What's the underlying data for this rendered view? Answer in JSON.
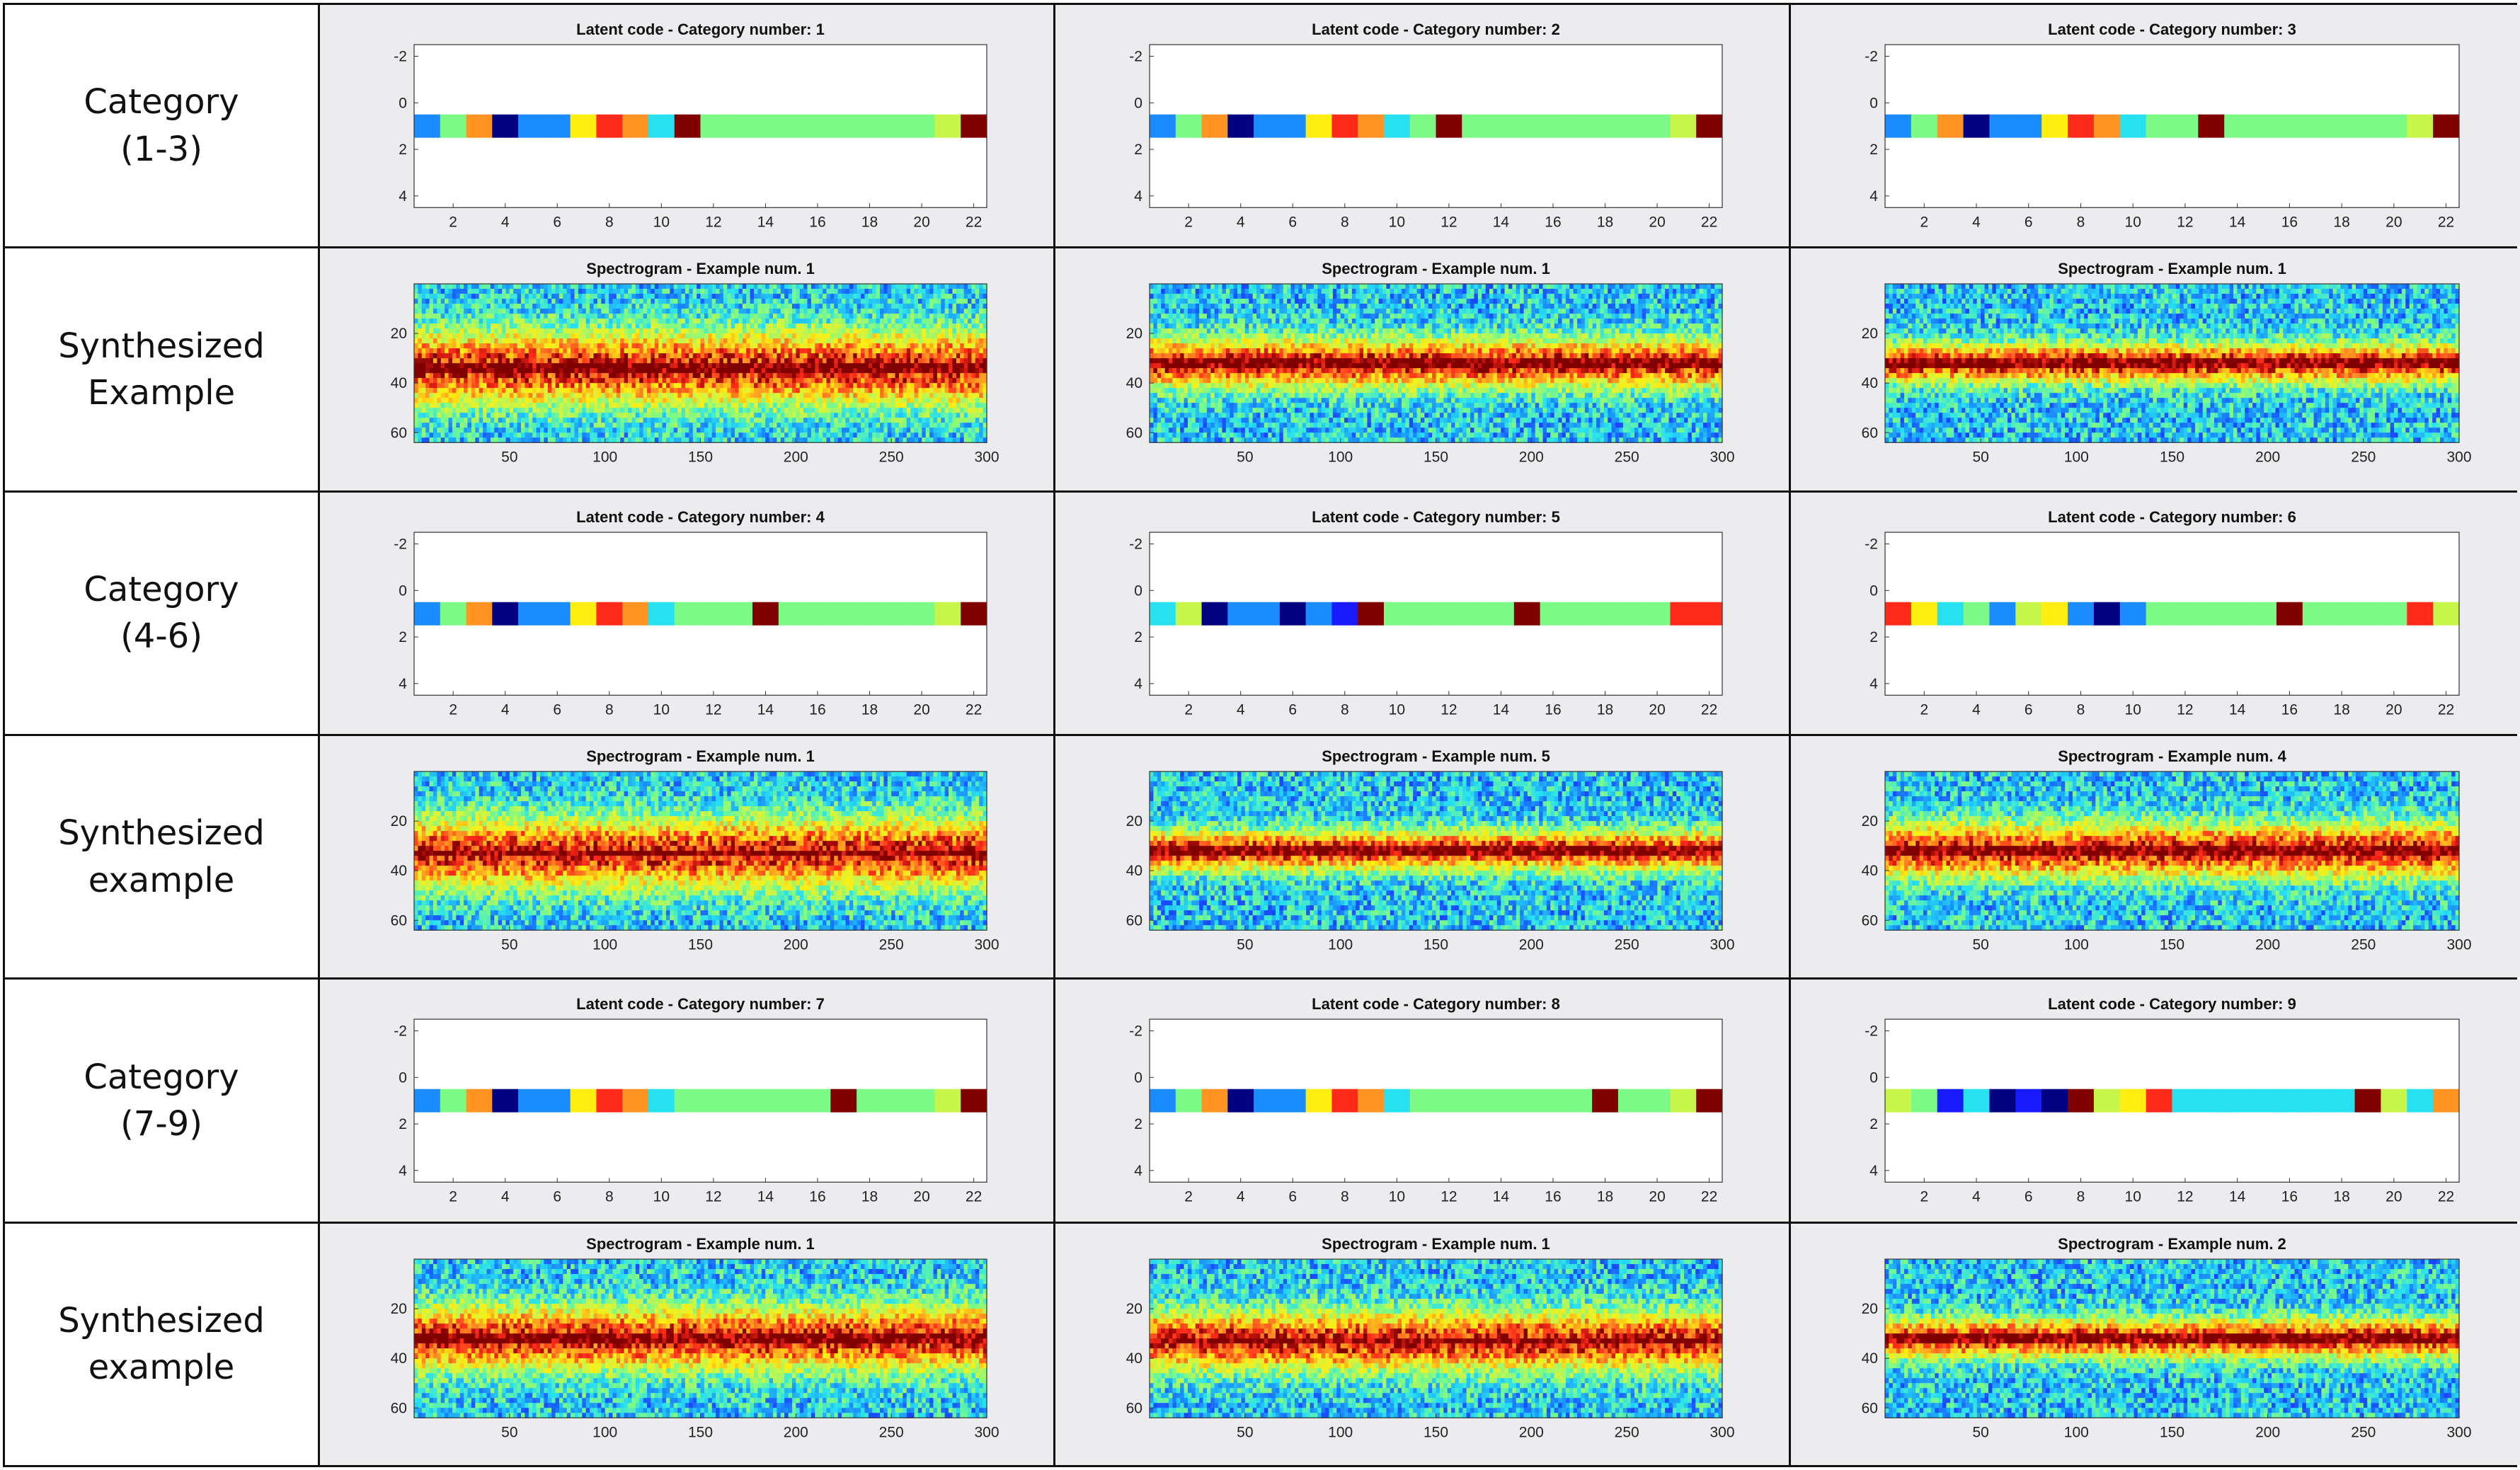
{
  "row_labels": [
    [
      "Category",
      "(1-3)"
    ],
    [
      "Synthesized",
      "Example"
    ],
    [
      "Category",
      "(4-6)"
    ],
    [
      "Synthesized",
      "example"
    ],
    [
      "Category",
      "(7-9)"
    ],
    [
      "Synthesized",
      "example"
    ]
  ],
  "colors": {
    "jet_1": "#000080",
    "jet_2": "#1a1aff",
    "jet_3": "#1a8cff",
    "jet_4": "#28e1f0",
    "jet_5": "#7dfa86",
    "jet_6": "#c8f54a",
    "jet_7": "#ffee11",
    "jet_8": "#ff9422",
    "jet_9": "#ff2a1a",
    "jet_10": "#800000"
  },
  "chart_data": [
    {
      "type": "heatmap",
      "kind": "latent",
      "title": "Latent code - Category number: 1",
      "x": {
        "range": [
          0.5,
          22.5
        ],
        "ticks": [
          "2",
          "4",
          "6",
          "8",
          "10",
          "12",
          "14",
          "16",
          "18",
          "20",
          "22"
        ]
      },
      "y": {
        "range": [
          -2.5,
          4.5
        ],
        "ticks": [
          "-2",
          "0",
          "2",
          "4"
        ]
      },
      "values": [
        3,
        5,
        8,
        1,
        3,
        3,
        7,
        9,
        8,
        4,
        10,
        5,
        5,
        5,
        5,
        5,
        5,
        5,
        5,
        5,
        6,
        10
      ]
    },
    {
      "type": "heatmap",
      "kind": "latent",
      "title": "Latent code - Category number: 2",
      "x": {
        "range": [
          0.5,
          22.5
        ],
        "ticks": [
          "2",
          "4",
          "6",
          "8",
          "10",
          "12",
          "14",
          "16",
          "18",
          "20",
          "22"
        ]
      },
      "y": {
        "range": [
          -2.5,
          4.5
        ],
        "ticks": [
          "-2",
          "0",
          "2",
          "4"
        ]
      },
      "values": [
        3,
        5,
        8,
        1,
        3,
        3,
        7,
        9,
        8,
        4,
        5,
        10,
        5,
        5,
        5,
        5,
        5,
        5,
        5,
        5,
        6,
        10
      ]
    },
    {
      "type": "heatmap",
      "kind": "latent",
      "title": "Latent code - Category number: 3",
      "x": {
        "range": [
          0.5,
          22.5
        ],
        "ticks": [
          "2",
          "4",
          "6",
          "8",
          "10",
          "12",
          "14",
          "16",
          "18",
          "20",
          "22"
        ]
      },
      "y": {
        "range": [
          -2.5,
          4.5
        ],
        "ticks": [
          "-2",
          "0",
          "2",
          "4"
        ]
      },
      "values": [
        3,
        5,
        8,
        1,
        3,
        3,
        7,
        9,
        8,
        4,
        5,
        5,
        10,
        5,
        5,
        5,
        5,
        5,
        5,
        5,
        6,
        10
      ]
    },
    {
      "type": "heatmap",
      "kind": "spectrogram",
      "title": "Spectrogram - Example num. 1",
      "x": {
        "range": [
          0,
          300
        ],
        "ticks": [
          "50",
          "100",
          "150",
          "200",
          "250",
          "300"
        ]
      },
      "y": {
        "range": [
          0,
          64
        ],
        "ticks": [
          "20",
          "40",
          "60"
        ]
      },
      "band_center": 34,
      "band_width": 15
    },
    {
      "type": "heatmap",
      "kind": "spectrogram",
      "title": "Spectrogram - Example num. 1",
      "x": {
        "range": [
          0,
          300
        ],
        "ticks": [
          "50",
          "100",
          "150",
          "200",
          "250",
          "300"
        ]
      },
      "y": {
        "range": [
          0,
          64
        ],
        "ticks": [
          "20",
          "40",
          "60"
        ]
      },
      "band_center": 32,
      "band_width": 10
    },
    {
      "type": "heatmap",
      "kind": "spectrogram",
      "title": "Spectrogram - Example num. 1",
      "x": {
        "range": [
          0,
          300
        ],
        "ticks": [
          "50",
          "100",
          "150",
          "200",
          "250",
          "300"
        ]
      },
      "y": {
        "range": [
          0,
          64
        ],
        "ticks": [
          "20",
          "40",
          "60"
        ]
      },
      "band_center": 32,
      "band_width": 8
    },
    {
      "type": "heatmap",
      "kind": "latent",
      "title": "Latent code - Category number: 4",
      "x": {
        "range": [
          0.5,
          22.5
        ],
        "ticks": [
          "2",
          "4",
          "6",
          "8",
          "10",
          "12",
          "14",
          "16",
          "18",
          "20",
          "22"
        ]
      },
      "y": {
        "range": [
          -2.5,
          4.5
        ],
        "ticks": [
          "-2",
          "0",
          "2",
          "4"
        ]
      },
      "values": [
        3,
        5,
        8,
        1,
        3,
        3,
        7,
        9,
        8,
        4,
        5,
        5,
        5,
        10,
        5,
        5,
        5,
        5,
        5,
        5,
        6,
        10
      ]
    },
    {
      "type": "heatmap",
      "kind": "latent",
      "title": "Latent code - Category number: 5",
      "x": {
        "range": [
          0.5,
          22.5
        ],
        "ticks": [
          "2",
          "4",
          "6",
          "8",
          "10",
          "12",
          "14",
          "16",
          "18",
          "20",
          "22"
        ]
      },
      "y": {
        "range": [
          -2.5,
          4.5
        ],
        "ticks": [
          "-2",
          "0",
          "2",
          "4"
        ]
      },
      "values": [
        4,
        6,
        1,
        3,
        3,
        1,
        3,
        2,
        10,
        5,
        5,
        5,
        5,
        5,
        10,
        5,
        5,
        5,
        5,
        5,
        9,
        9
      ]
    },
    {
      "type": "heatmap",
      "kind": "latent",
      "title": "Latent code - Category number: 6",
      "x": {
        "range": [
          0.5,
          22.5
        ],
        "ticks": [
          "2",
          "4",
          "6",
          "8",
          "10",
          "12",
          "14",
          "16",
          "18",
          "20",
          "22"
        ]
      },
      "y": {
        "range": [
          -2.5,
          4.5
        ],
        "ticks": [
          "-2",
          "0",
          "2",
          "4"
        ]
      },
      "values": [
        9,
        7,
        4,
        5,
        3,
        6,
        7,
        3,
        1,
        3,
        5,
        5,
        5,
        5,
        5,
        10,
        5,
        5,
        5,
        5,
        9,
        6
      ]
    },
    {
      "type": "heatmap",
      "kind": "spectrogram",
      "title": "Spectrogram - Example num. 1",
      "x": {
        "range": [
          0,
          300
        ],
        "ticks": [
          "50",
          "100",
          "150",
          "200",
          "250",
          "300"
        ]
      },
      "y": {
        "range": [
          0,
          64
        ],
        "ticks": [
          "20",
          "40",
          "60"
        ]
      },
      "band_center": 33,
      "band_width": 14
    },
    {
      "type": "heatmap",
      "kind": "spectrogram",
      "title": "Spectrogram - Example num. 5",
      "x": {
        "range": [
          0,
          300
        ],
        "ticks": [
          "50",
          "100",
          "150",
          "200",
          "250",
          "300"
        ]
      },
      "y": {
        "range": [
          0,
          64
        ],
        "ticks": [
          "20",
          "40",
          "60"
        ]
      },
      "band_center": 32,
      "band_width": 8
    },
    {
      "type": "heatmap",
      "kind": "spectrogram",
      "title": "Spectrogram - Example num. 4",
      "x": {
        "range": [
          0,
          300
        ],
        "ticks": [
          "50",
          "100",
          "150",
          "200",
          "250",
          "300"
        ]
      },
      "y": {
        "range": [
          0,
          64
        ],
        "ticks": [
          "20",
          "40",
          "60"
        ]
      },
      "band_center": 32,
      "band_width": 11
    },
    {
      "type": "heatmap",
      "kind": "latent",
      "title": "Latent code - Category number: 7",
      "x": {
        "range": [
          0.5,
          22.5
        ],
        "ticks": [
          "2",
          "4",
          "6",
          "8",
          "10",
          "12",
          "14",
          "16",
          "18",
          "20",
          "22"
        ]
      },
      "y": {
        "range": [
          -2.5,
          4.5
        ],
        "ticks": [
          "-2",
          "0",
          "2",
          "4"
        ]
      },
      "values": [
        3,
        5,
        8,
        1,
        3,
        3,
        7,
        9,
        8,
        4,
        5,
        5,
        5,
        5,
        5,
        5,
        10,
        5,
        5,
        5,
        6,
        10
      ]
    },
    {
      "type": "heatmap",
      "kind": "latent",
      "title": "Latent code - Category number: 8",
      "x": {
        "range": [
          0.5,
          22.5
        ],
        "ticks": [
          "2",
          "4",
          "6",
          "8",
          "10",
          "12",
          "14",
          "16",
          "18",
          "20",
          "22"
        ]
      },
      "y": {
        "range": [
          -2.5,
          4.5
        ],
        "ticks": [
          "-2",
          "0",
          "2",
          "4"
        ]
      },
      "values": [
        3,
        5,
        8,
        1,
        3,
        3,
        7,
        9,
        8,
        4,
        5,
        5,
        5,
        5,
        5,
        5,
        5,
        10,
        5,
        5,
        6,
        10
      ]
    },
    {
      "type": "heatmap",
      "kind": "latent",
      "title": "Latent code - Category number: 9",
      "x": {
        "range": [
          0.5,
          22.5
        ],
        "ticks": [
          "2",
          "4",
          "6",
          "8",
          "10",
          "12",
          "14",
          "16",
          "18",
          "20",
          "22"
        ]
      },
      "y": {
        "range": [
          -2.5,
          4.5
        ],
        "ticks": [
          "-2",
          "0",
          "2",
          "4"
        ]
      },
      "values": [
        6,
        5,
        2,
        4,
        1,
        2,
        1,
        10,
        6,
        7,
        9,
        4,
        4,
        4,
        4,
        4,
        4,
        4,
        10,
        6,
        4,
        8
      ]
    },
    {
      "type": "heatmap",
      "kind": "spectrogram",
      "title": "Spectrogram - Example num. 1",
      "x": {
        "range": [
          0,
          300
        ],
        "ticks": [
          "50",
          "100",
          "150",
          "200",
          "250",
          "300"
        ]
      },
      "y": {
        "range": [
          0,
          64
        ],
        "ticks": [
          "20",
          "40",
          "60"
        ]
      },
      "band_center": 32,
      "band_width": 13
    },
    {
      "type": "heatmap",
      "kind": "spectrogram",
      "title": "Spectrogram - Example num. 1",
      "x": {
        "range": [
          0,
          300
        ],
        "ticks": [
          "50",
          "100",
          "150",
          "200",
          "250",
          "300"
        ]
      },
      "y": {
        "range": [
          0,
          64
        ],
        "ticks": [
          "20",
          "40",
          "60"
        ]
      },
      "band_center": 33,
      "band_width": 12
    },
    {
      "type": "heatmap",
      "kind": "spectrogram",
      "title": "Spectrogram - Example num. 2",
      "x": {
        "range": [
          0,
          300
        ],
        "ticks": [
          "50",
          "100",
          "150",
          "200",
          "250",
          "300"
        ]
      },
      "y": {
        "range": [
          0,
          64
        ],
        "ticks": [
          "20",
          "40",
          "60"
        ]
      },
      "band_center": 32,
      "band_width": 8
    }
  ]
}
